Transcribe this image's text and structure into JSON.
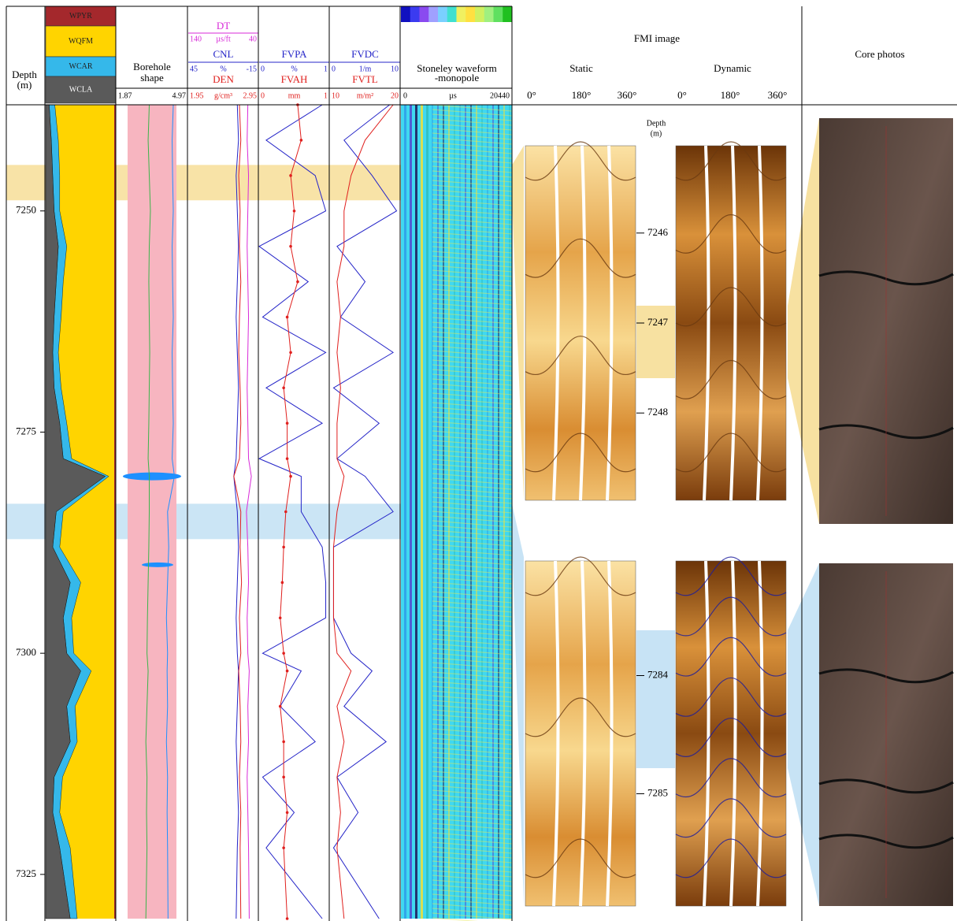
{
  "depth_axis": {
    "label": [
      "Depth",
      "(m)"
    ],
    "lim": [
      7238,
      7330
    ],
    "ticks": [
      7250,
      7275,
      7300,
      7325
    ],
    "samples": [
      7238,
      7242,
      7246,
      7250,
      7254,
      7258,
      7262,
      7266,
      7270,
      7274,
      7278,
      7280,
      7284,
      7288,
      7292,
      7296,
      7300,
      7302,
      7306,
      7310,
      7314,
      7318,
      7322,
      7330
    ]
  },
  "lithology": {
    "legend": [
      {
        "name": "WPYR",
        "color": "#a4282c"
      },
      {
        "name": "WQFM",
        "color": "#ffd400"
      },
      {
        "name": "WCAR",
        "color": "#35b8ea"
      },
      {
        "name": "WCLA",
        "color": "#5a5a5a"
      }
    ],
    "WCLA": [
      0.05,
      0.08,
      0.1,
      0.12,
      0.18,
      0.15,
      0.12,
      0.1,
      0.12,
      0.2,
      0.25,
      0.85,
      0.15,
      0.1,
      0.35,
      0.25,
      0.3,
      0.5,
      0.3,
      0.35,
      0.12,
      0.1,
      0.2,
      0.35
    ],
    "WCAR": [
      0.08,
      0.1,
      0.1,
      0.08,
      0.12,
      0.1,
      0.1,
      0.08,
      0.1,
      0.1,
      0.12,
      0.05,
      0.1,
      0.1,
      0.15,
      0.12,
      0.1,
      0.15,
      0.12,
      0.1,
      0.12,
      0.1,
      0.15,
      0.1
    ]
  },
  "borehole": {
    "title": [
      "Borehole",
      "shape"
    ],
    "scale": [
      "1.87",
      "4.97"
    ],
    "lim": [
      1.87,
      4.97
    ],
    "curves": [
      {
        "color": "#3cb44b",
        "values": [
          3.3,
          3.25,
          3.3,
          3.35,
          3.3,
          3.28,
          3.3,
          3.32,
          3.3,
          3.28,
          3.25,
          3.3,
          3.3,
          3.28,
          3.25,
          3.22,
          3.2,
          3.25,
          3.2,
          3.15,
          3.2,
          3.18,
          3.2,
          3.15
        ]
      },
      {
        "color": "#1e90ff",
        "values": [
          4.35,
          4.3,
          4.32,
          4.35,
          4.3,
          4.32,
          4.35,
          4.3,
          4.32,
          4.35,
          4.3,
          4.4,
          4.1,
          4.15,
          4.1,
          4.05,
          4.1,
          4.08,
          4.1,
          4.05,
          4.1,
          4.08,
          4.1,
          4.12
        ]
      }
    ]
  },
  "DT": {
    "name": "DT",
    "scale": [
      "140",
      "µs/ft",
      "40"
    ],
    "lim": [
      140,
      40
    ],
    "color": "#d82ad8",
    "values": [
      55,
      56,
      54,
      55,
      56,
      55,
      54,
      55,
      56,
      55,
      54,
      50,
      57,
      55,
      54,
      56,
      55,
      53,
      55,
      54,
      56,
      55,
      54,
      53
    ]
  },
  "CNL": {
    "name": "CNL",
    "scale": [
      "45",
      "%",
      "-15"
    ],
    "lim": [
      45,
      -15
    ],
    "color": "#2424c8",
    "values": [
      3,
      2,
      4,
      3,
      2,
      3,
      4,
      3,
      2,
      3,
      4,
      6,
      3,
      2,
      3,
      4,
      3,
      2,
      3,
      4,
      3,
      2,
      3,
      4
    ]
  },
  "DEN": {
    "name": "DEN",
    "scale": [
      "1.95",
      "g/cm³",
      "2.95"
    ],
    "lim": [
      1.95,
      2.95
    ],
    "color": "#e0201e",
    "values": [
      2.68,
      2.7,
      2.67,
      2.69,
      2.68,
      2.7,
      2.68,
      2.67,
      2.69,
      2.7,
      2.68,
      2.6,
      2.7,
      2.69,
      2.71,
      2.68,
      2.7,
      2.67,
      2.69,
      2.7,
      2.68,
      2.7,
      2.69,
      2.7
    ]
  },
  "FVPA": {
    "name": "FVPA",
    "scale": [
      "0",
      "%",
      "1"
    ],
    "lim": [
      0,
      1
    ],
    "color": "#2424c8",
    "values": [
      0.9,
      0.1,
      0.8,
      0.95,
      0.0,
      0.7,
      0.05,
      0.95,
      0.1,
      0.9,
      0.0,
      0.6,
      0.6,
      0.9,
      0.95,
      0.95,
      0.05,
      0.6,
      0.3,
      0.8,
      0.05,
      0.5,
      0.1,
      0.9
    ]
  },
  "FVAH": {
    "name": "FVAH",
    "scale": [
      "0",
      "mm",
      "1"
    ],
    "lim": [
      0,
      1
    ],
    "color": "#e0201e",
    "values": [
      0.55,
      0.6,
      0.45,
      0.5,
      0.45,
      0.55,
      0.4,
      0.45,
      0.35,
      0.4,
      0.4,
      0.45,
      0.38,
      0.35,
      0.33,
      0.3,
      0.35,
      0.4,
      0.3,
      0.35,
      0.35,
      0.4,
      0.35,
      0.4
    ]
  },
  "FVDC": {
    "name": "FVDC",
    "scale": [
      "0",
      "1/m",
      "10"
    ],
    "lim": [
      0,
      10
    ],
    "color": "#2424c8",
    "values": [
      8.5,
      2,
      6,
      9.5,
      1,
      5,
      1.5,
      9,
      0.5,
      7,
      1,
      5,
      9,
      0.5,
      0.5,
      0.5,
      3,
      6,
      2,
      8,
      1,
      4,
      0.5,
      7
    ]
  },
  "FVTL": {
    "name": "FVTL",
    "scale": [
      "10",
      "m/m²",
      "20"
    ],
    "lim": [
      10,
      20
    ],
    "color": "#e0201e",
    "values": [
      19,
      15,
      13,
      12,
      12,
      11,
      11.5,
      11,
      11.5,
      11,
      11,
      12,
      11,
      10.5,
      10.5,
      10.5,
      11,
      13,
      11,
      12,
      11,
      11.5,
      11,
      12
    ]
  },
  "stoneley": {
    "title": [
      "Stoneley waveform",
      "-monopole"
    ],
    "scale": [
      "0",
      "µs",
      "20440"
    ]
  },
  "intervals": [
    {
      "top": 7244.8,
      "bottom": 7248.8,
      "color": "#f5d98a"
    },
    {
      "top": 7283.1,
      "bottom": 7287.1,
      "color": "#b9dcf2"
    }
  ],
  "fmi": {
    "title": "FMI image",
    "views": [
      "Static",
      "Dynamic"
    ],
    "angles": [
      "0°",
      "180°",
      "360°"
    ],
    "depth_label": [
      "Depth",
      "(m)"
    ],
    "upper": {
      "lim": [
        7245.03,
        7248.97
      ],
      "ticks": [
        7246,
        7247,
        7248
      ]
    },
    "lower": {
      "lim": [
        7283.03,
        7285.95
      ],
      "ticks": [
        7284,
        7285
      ]
    }
  },
  "core": {
    "title": "Core photos"
  }
}
